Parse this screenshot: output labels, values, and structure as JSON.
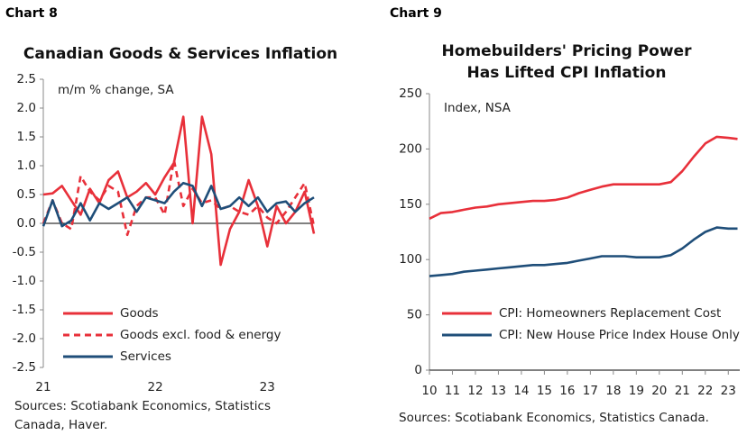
{
  "chart_data": [
    {
      "type": "line",
      "label": "Chart 8",
      "title": [
        "Canadian Goods & Services Inflation"
      ],
      "annotation": "m/m % change, SA",
      "source": [
        "Sources: Scotiabank Economics, Statistics",
        "Canada, Haver."
      ],
      "categories": [
        "21",
        null,
        null,
        null,
        null,
        null,
        null,
        null,
        null,
        null,
        null,
        null,
        "22",
        null,
        null,
        null,
        null,
        null,
        null,
        null,
        null,
        null,
        null,
        null,
        "23",
        null,
        null,
        null,
        null,
        null
      ],
      "ylim": [
        -2.5,
        2.5
      ],
      "yticks": [
        2.5,
        {
          "value": 2,
          "label": "2.0"
        },
        1.5,
        {
          "value": 1,
          "label": "1.0"
        },
        0.5,
        {
          "value": 0,
          "label": "0.0"
        },
        -0.5,
        {
          "value": -1,
          "label": "-1.0"
        },
        -1.5,
        {
          "value": -2,
          "label": "-2.0"
        },
        -2.5
      ],
      "legend": "lower left",
      "grid": false,
      "series": [
        {
          "name": "Goods",
          "color": "#e8303a",
          "dash": false,
          "values": [
            0.5,
            0.52,
            0.65,
            0.4,
            0.15,
            0.6,
            0.35,
            0.75,
            0.9,
            0.45,
            0.55,
            0.7,
            0.5,
            0.8,
            1.05,
            1.85,
            0.0,
            1.85,
            1.2,
            -0.72,
            -0.1,
            0.2,
            0.75,
            0.3,
            -0.4,
            0.3,
            0.0,
            0.2,
            0.55,
            -0.18
          ]
        },
        {
          "name": "Goods excl. food & energy",
          "color": "#e8303a",
          "dash": true,
          "values": [
            0.0,
            0.4,
            0.0,
            -0.1,
            0.82,
            0.55,
            0.4,
            0.65,
            0.55,
            -0.2,
            0.3,
            0.45,
            0.45,
            0.15,
            1.1,
            0.3,
            0.6,
            0.35,
            0.4,
            0.25,
            0.3,
            0.2,
            0.15,
            0.3,
            0.1,
            0.0,
            0.2,
            0.45,
            0.7,
            -0.05
          ]
        },
        {
          "name": "Services",
          "color": "#1f4e79",
          "dash": false,
          "values": [
            -0.05,
            0.4,
            -0.05,
            0.05,
            0.35,
            0.05,
            0.35,
            0.25,
            0.35,
            0.45,
            0.2,
            0.45,
            0.4,
            0.35,
            0.55,
            0.7,
            0.65,
            0.3,
            0.65,
            0.25,
            0.3,
            0.45,
            0.3,
            0.45,
            0.2,
            0.35,
            0.38,
            0.2,
            0.35,
            0.45
          ]
        }
      ]
    },
    {
      "type": "line",
      "label": "Chart 9",
      "title": [
        "Homebuilders' Pricing Power",
        "Has Lifted CPI Inflation"
      ],
      "annotation": "Index, NSA",
      "source": [
        "Sources: Scotiabank Economics, Statistics Canada."
      ],
      "x": [
        10,
        10.5,
        11,
        11.5,
        12,
        12.5,
        13,
        13.5,
        14,
        14.5,
        15,
        15.5,
        16,
        16.5,
        17,
        17.5,
        18,
        18.5,
        19,
        19.5,
        20,
        20.5,
        21,
        21.5,
        22,
        22.5,
        23,
        23.4
      ],
      "xlim": [
        10,
        23.5
      ],
      "xticks": [
        10,
        11,
        12,
        13,
        14,
        15,
        16,
        17,
        18,
        19,
        20,
        21,
        22,
        23
      ],
      "ylim": [
        0,
        250
      ],
      "yticks": [
        0,
        50,
        100,
        150,
        200,
        250
      ],
      "legend": "lower left",
      "grid": false,
      "series": [
        {
          "name": "CPI: Homeowners Replacement Cost",
          "color": "#e8303a",
          "dash": false,
          "values": [
            137,
            142,
            143,
            145,
            147,
            148,
            150,
            151,
            152,
            153,
            153,
            154,
            156,
            160,
            163,
            166,
            168,
            168,
            168,
            168,
            168,
            170,
            180,
            193,
            205,
            211,
            210,
            209
          ]
        },
        {
          "name": "CPI: New House Price Index House Only",
          "color": "#1f4e79",
          "dash": false,
          "values": [
            85,
            86,
            87,
            89,
            90,
            91,
            92,
            93,
            94,
            95,
            95,
            96,
            97,
            99,
            101,
            103,
            103,
            103,
            102,
            102,
            102,
            104,
            110,
            118,
            125,
            129,
            128,
            128
          ]
        }
      ]
    }
  ]
}
